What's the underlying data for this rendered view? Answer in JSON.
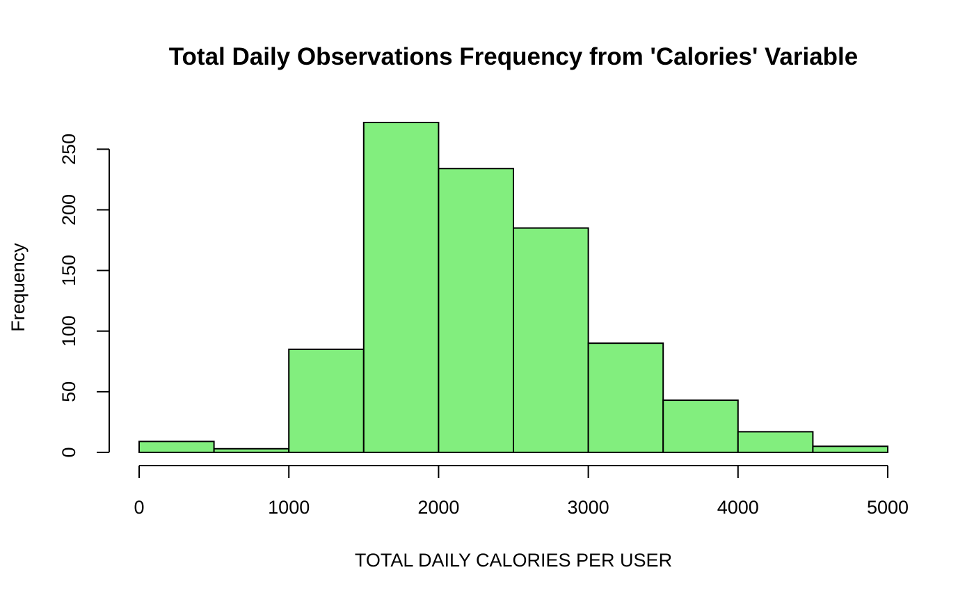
{
  "chart_data": {
    "type": "bar",
    "title": "Total Daily Observations Frequency from 'Calories' Variable",
    "xlabel": "TOTAL DAILY CALORIES PER USER",
    "ylabel": "Frequency",
    "bins": [
      {
        "start": 0,
        "end": 500,
        "count": 9
      },
      {
        "start": 500,
        "end": 1000,
        "count": 3
      },
      {
        "start": 1000,
        "end": 1500,
        "count": 85
      },
      {
        "start": 1500,
        "end": 2000,
        "count": 272
      },
      {
        "start": 2000,
        "end": 2500,
        "count": 234
      },
      {
        "start": 2500,
        "end": 3000,
        "count": 185
      },
      {
        "start": 3000,
        "end": 3500,
        "count": 90
      },
      {
        "start": 3500,
        "end": 4000,
        "count": 43
      },
      {
        "start": 4000,
        "end": 4500,
        "count": 17
      },
      {
        "start": 4500,
        "end": 5000,
        "count": 5
      }
    ],
    "xlim": [
      0,
      5000
    ],
    "ylim": [
      0,
      272
    ],
    "x_ticks": [
      0,
      1000,
      2000,
      3000,
      4000,
      5000
    ],
    "y_ticks": [
      0,
      50,
      100,
      150,
      200,
      250
    ],
    "bar_color": "#82ee7e",
    "edge_color": "#000000",
    "grid": false,
    "legend": false
  }
}
